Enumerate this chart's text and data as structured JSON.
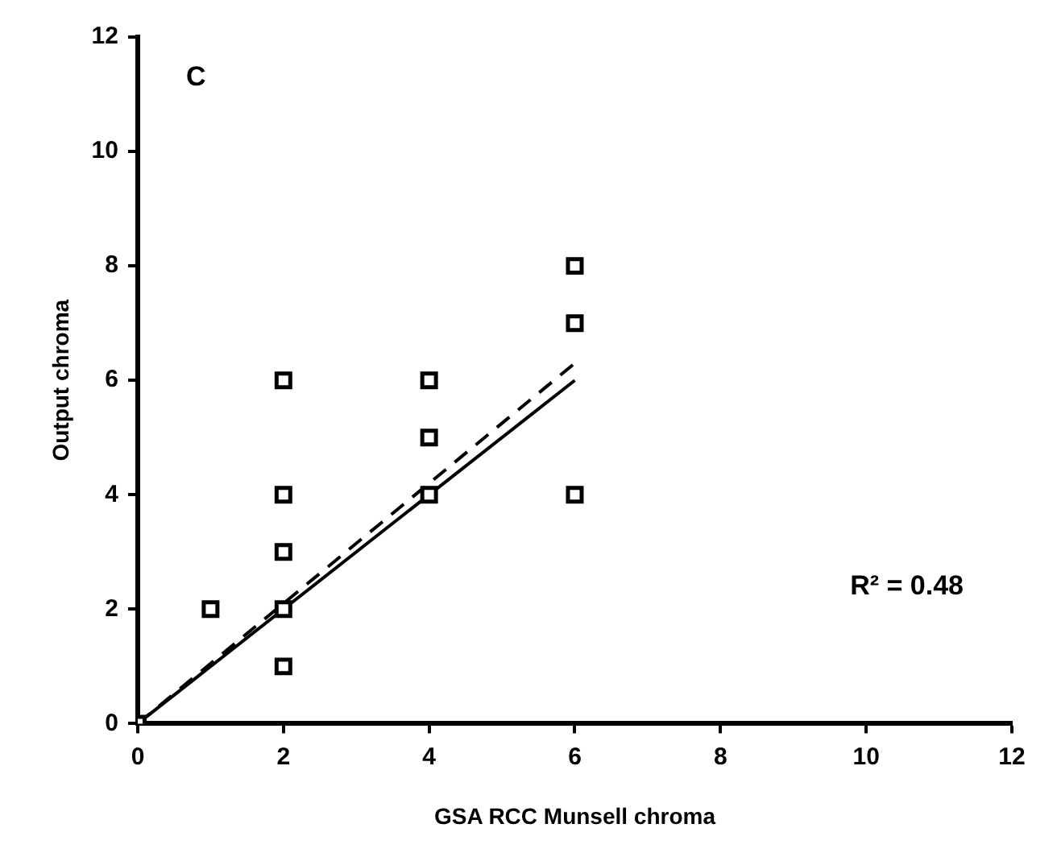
{
  "chart_data": {
    "type": "scatter",
    "xlabel": "GSA RCC Munsell chroma",
    "ylabel": "Output chroma",
    "annotations": [
      "C",
      "R² = 0.48"
    ],
    "xlim": [
      0,
      12
    ],
    "ylim": [
      0,
      12
    ],
    "xticks": [
      0,
      2,
      4,
      6,
      8,
      10,
      12
    ],
    "yticks": [
      0,
      2,
      4,
      6,
      8,
      10,
      12
    ],
    "grid": false,
    "legend": false,
    "series": [
      {
        "color": "#000000",
        "marker": "square",
        "x": [
          0,
          1,
          2,
          2,
          2,
          2,
          2,
          4,
          4,
          4,
          6,
          6,
          6
        ],
        "values": [
          0,
          2,
          6,
          4,
          3,
          2,
          1,
          6,
          5,
          4,
          8,
          7,
          4
        ]
      },
      {
        "type": "line",
        "color": "#000000",
        "line_style": "solid",
        "marker": "none",
        "x": [
          0,
          6
        ],
        "values": [
          0,
          6
        ]
      },
      {
        "type": "line",
        "color": "#000000",
        "line_style": "dashed",
        "marker": "none",
        "x": [
          0,
          6
        ],
        "values": [
          0,
          6.3
        ]
      }
    ]
  }
}
